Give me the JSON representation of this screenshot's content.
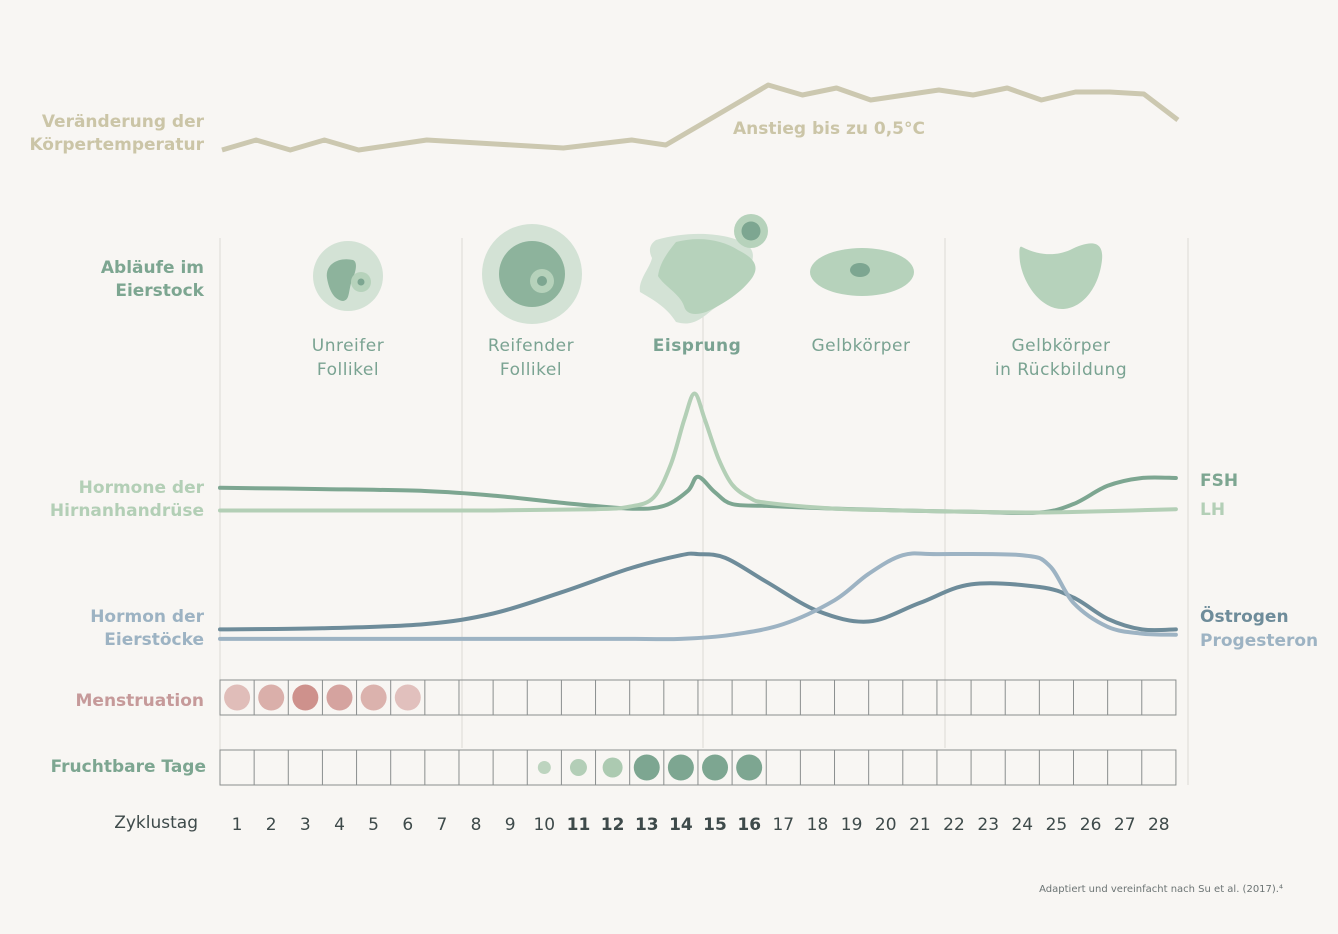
{
  "chart_data": {
    "type": "line",
    "title": "",
    "x_label": "Zyklustag",
    "days": [
      "1",
      "2",
      "3",
      "4",
      "5",
      "6",
      "7",
      "8",
      "9",
      "10",
      "11",
      "12",
      "13",
      "14",
      "15",
      "16",
      "17",
      "18",
      "19",
      "20",
      "21",
      "22",
      "23",
      "24",
      "25",
      "26",
      "27",
      "28"
    ],
    "emphasized_days": [
      "11",
      "12",
      "13",
      "14",
      "15",
      "16"
    ],
    "temperature": {
      "label_line1": "Veränderung der",
      "label_line2": "Körpertemperatur",
      "annotation": "Anstieg bis zu 0,5°C",
      "x": [
        0,
        1,
        2,
        3,
        4,
        5,
        6,
        7,
        8,
        9,
        10,
        11,
        12,
        13,
        14,
        15,
        16,
        17,
        18,
        19,
        20,
        21,
        22,
        23,
        24,
        25,
        26,
        27,
        28
      ],
      "values": [
        0.0,
        0.1,
        0.0,
        0.1,
        0.0,
        0.05,
        0.1,
        0.08,
        0.06,
        0.04,
        0.02,
        0.06,
        0.1,
        0.05,
        0.25,
        0.45,
        0.65,
        0.55,
        0.62,
        0.5,
        0.55,
        0.6,
        0.55,
        0.62,
        0.5,
        0.58,
        0.58,
        0.56,
        0.3
      ]
    },
    "ovary": {
      "label_line1": "Abläufe im",
      "label_line2": "Eierstock",
      "stages": [
        {
          "line1": "Unreifer",
          "line2": "Follikel",
          "bold": false
        },
        {
          "line1": "Reifender",
          "line2": "Follikel",
          "bold": false
        },
        {
          "line1": "Eisprung",
          "line2": "",
          "bold": true
        },
        {
          "line1": "Gelbkörper",
          "line2": "",
          "bold": false
        },
        {
          "line1": "Gelbkörper",
          "line2": "in Rückbildung",
          "bold": false
        }
      ]
    },
    "pituitary": {
      "label_line1": "Hormone der",
      "label_line2": "Hirnanhandrüse",
      "series": [
        {
          "name": "FSH",
          "color": "#7da691",
          "x": [
            0,
            3,
            6,
            8,
            10,
            12,
            13,
            13.7,
            14,
            14.5,
            15,
            16,
            18,
            20,
            22,
            24,
            25,
            26,
            27,
            28
          ],
          "values": [
            0.45,
            0.43,
            0.4,
            0.33,
            0.22,
            0.13,
            0.17,
            0.4,
            0.62,
            0.38,
            0.2,
            0.17,
            0.13,
            0.1,
            0.08,
            0.07,
            0.2,
            0.48,
            0.6,
            0.6
          ]
        },
        {
          "name": "LH",
          "color": "#b3cfb6",
          "x": [
            0,
            4,
            8,
            11,
            12,
            12.7,
            13.2,
            13.6,
            13.9,
            14.2,
            14.6,
            15,
            15.5,
            16,
            18,
            20,
            22,
            24,
            26,
            28
          ],
          "values": [
            0.1,
            0.1,
            0.1,
            0.12,
            0.16,
            0.3,
            0.8,
            1.5,
            1.9,
            1.5,
            0.9,
            0.5,
            0.3,
            0.22,
            0.13,
            0.1,
            0.08,
            0.07,
            0.09,
            0.12
          ]
        }
      ]
    },
    "ovarian": {
      "label_line1": "Hormon der",
      "label_line2": "Eierstöcke",
      "series": [
        {
          "name": "Östrogen",
          "color": "#6e8c9a",
          "x": [
            0,
            3,
            6,
            8,
            10,
            12,
            13.5,
            14,
            14.8,
            16,
            17.5,
            19,
            20.5,
            22,
            24,
            25,
            26,
            27,
            28
          ],
          "values": [
            0.2,
            0.22,
            0.3,
            0.5,
            0.9,
            1.35,
            1.6,
            1.62,
            1.55,
            1.1,
            0.55,
            0.35,
            0.7,
            1.05,
            1.0,
            0.8,
            0.4,
            0.2,
            0.2
          ]
        },
        {
          "name": "Progesteron",
          "color": "#9db3c3",
          "x": [
            0,
            4,
            8,
            12,
            13.5,
            15,
            16.5,
            18,
            19,
            20,
            21,
            23.5,
            24.3,
            25,
            26,
            27,
            28
          ],
          "values": [
            0.02,
            0.02,
            0.02,
            0.02,
            0.02,
            0.1,
            0.3,
            0.75,
            1.25,
            1.6,
            1.62,
            1.6,
            1.4,
            0.7,
            0.25,
            0.12,
            0.1
          ]
        }
      ]
    },
    "menstruation": {
      "label": "Menstruation",
      "intensity": [
        0.4,
        0.6,
        1.0,
        0.75,
        0.55,
        0.35,
        0,
        0,
        0,
        0,
        0,
        0,
        0,
        0,
        0,
        0,
        0,
        0,
        0,
        0,
        0,
        0,
        0,
        0,
        0,
        0,
        0,
        0
      ]
    },
    "fertile": {
      "label": "Fruchtbare Tage",
      "level": [
        0,
        0,
        0,
        0,
        0,
        0,
        0,
        0,
        0,
        0.25,
        0.45,
        0.6,
        1,
        1,
        1,
        1,
        0,
        0,
        0,
        0,
        0,
        0,
        0,
        0,
        0,
        0,
        0,
        0
      ]
    }
  },
  "colors": {
    "temperature": "#ccc8b0",
    "temperature_label": "#cbc5a7",
    "ovary_label": "#7da691",
    "pituitary_label": "#b3cfb6",
    "ovarian_label": "#9db3c3",
    "menstruation_label": "#c69a9a",
    "fertile_label": "#7da691",
    "menstruation_dot": "#c98681",
    "fertile_dot_light": "#a9c8ae",
    "fertile_dot_dark": "#7da691"
  },
  "footnote": "Adaptiert und vereinfacht nach Su et al. (2017).⁴"
}
